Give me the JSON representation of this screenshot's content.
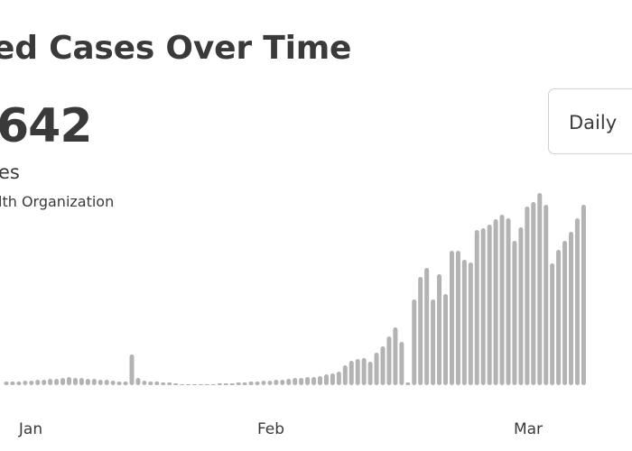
{
  "header": {
    "title": "ed Cases Over Time",
    "total": "642",
    "subtitle": "es",
    "source": "lth Organization"
  },
  "dropdown": {
    "selected": "Daily"
  },
  "chart_data": {
    "type": "bar",
    "color": "#b3b3b3",
    "x_ticks": [
      "Jan",
      "Feb",
      "Mar"
    ],
    "series": [
      {
        "values": [
          4,
          4,
          4,
          5,
          5,
          6,
          6,
          7,
          7,
          8,
          9,
          8,
          8,
          7,
          7,
          6,
          6,
          5,
          4,
          4,
          34,
          8,
          5,
          4,
          4,
          3,
          3,
          2,
          1,
          1,
          1,
          1,
          1,
          1,
          2,
          2,
          2,
          3,
          3,
          4,
          4,
          5,
          5,
          6,
          6,
          7,
          8,
          8,
          9,
          9,
          10,
          12,
          13,
          15,
          22,
          27,
          29,
          30,
          26,
          36,
          43,
          54,
          64,
          48,
          3,
          95,
          120,
          130,
          95,
          123,
          101,
          149,
          149,
          139,
          136,
          172,
          174,
          178,
          184,
          189,
          185,
          160,
          175,
          198,
          203,
          213,
          200,
          135,
          150,
          160,
          170,
          185,
          200
        ]
      }
    ]
  }
}
